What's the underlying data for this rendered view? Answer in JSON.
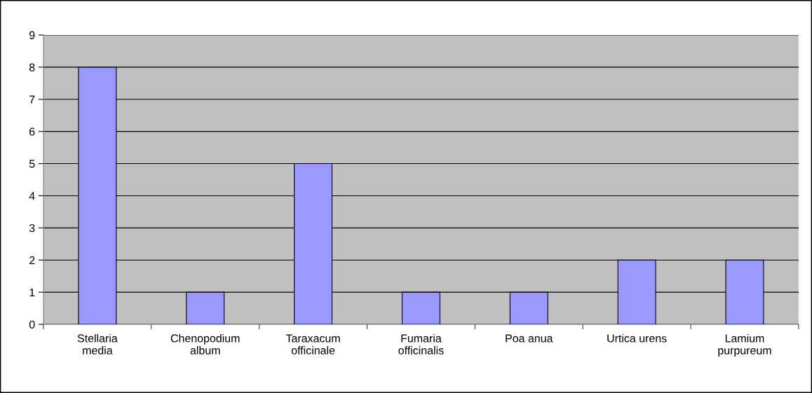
{
  "chart_data": {
    "type": "bar",
    "categories": [
      "Stellaria\nmedia",
      "Chenopodium\nalbum",
      "Taraxacum\nofficinale",
      "Fumaria\nofficinalis",
      "Poa anua",
      "Urtica urens",
      "Lamium\npurpureum"
    ],
    "values": [
      8,
      1,
      5,
      1,
      1,
      2,
      2
    ],
    "color": "#9999ff",
    "ylim": [
      0,
      9
    ],
    "yticks": [
      0,
      1,
      2,
      3,
      4,
      5,
      6,
      7,
      8,
      9
    ],
    "grid": "y"
  }
}
